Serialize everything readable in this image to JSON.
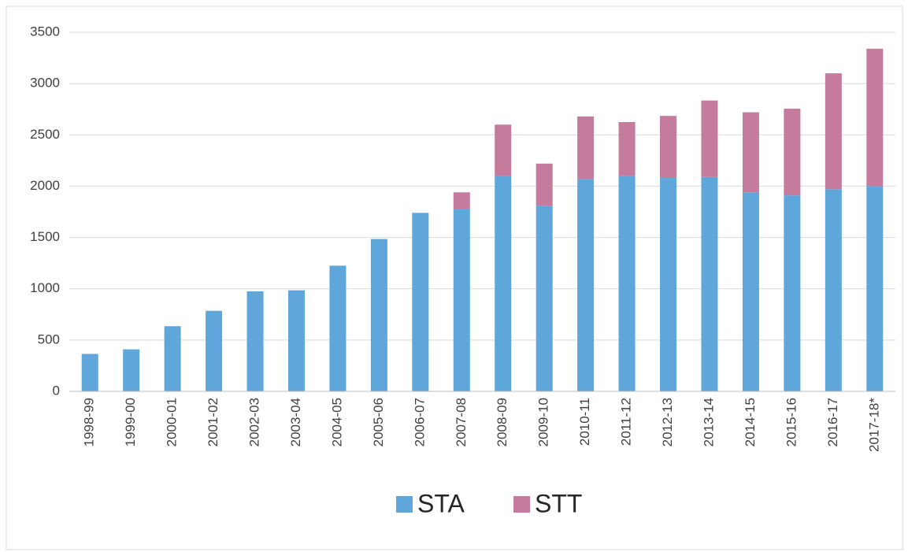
{
  "chart_data": {
    "type": "stacked_bar",
    "categories": [
      "1998-99",
      "1999-00",
      "2000-01",
      "2001-02",
      "2002-03",
      "2003-04",
      "2004-05",
      "2005-06",
      "2006-07",
      "2007-08",
      "2008-09",
      "2009-10",
      "2010-11",
      "2011-12",
      "2012-13",
      "2013-14",
      "2014-15",
      "2015-16",
      "2016-17",
      "2017-18*"
    ],
    "series": [
      {
        "name": "STA",
        "color": "#5fa6da",
        "values": [
          365,
          410,
          635,
          785,
          975,
          985,
          1225,
          1485,
          1740,
          1780,
          2100,
          1810,
          2070,
          2100,
          2080,
          2090,
          1940,
          1910,
          1970,
          2000
        ]
      },
      {
        "name": "STT",
        "color": "#c47b9c",
        "values": [
          null,
          null,
          null,
          null,
          null,
          null,
          null,
          null,
          null,
          160,
          500,
          410,
          610,
          525,
          605,
          745,
          780,
          845,
          1130,
          1340
        ]
      }
    ],
    "ylim": [
      0,
      3500
    ],
    "yticks": [
      0,
      500,
      1000,
      1500,
      2000,
      2500,
      3000,
      3500
    ],
    "grid": true,
    "legend": "bottom"
  }
}
